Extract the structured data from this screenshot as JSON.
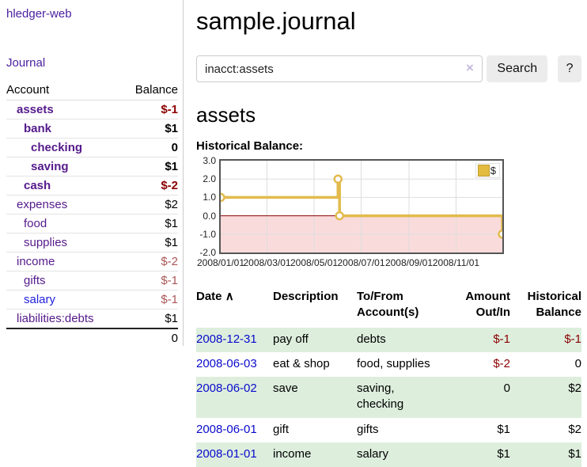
{
  "app": {
    "title": "hledger-web",
    "nav": {
      "journal": "Journal"
    }
  },
  "sidebar": {
    "headers": {
      "account": "Account",
      "balance": "Balance"
    },
    "accounts": [
      {
        "name": "assets",
        "balance": "$-1",
        "level": 1,
        "bold": true,
        "neg": true,
        "link": "purple"
      },
      {
        "name": "bank",
        "balance": "$1",
        "level": 2,
        "bold": true,
        "neg": false,
        "link": "purple"
      },
      {
        "name": "checking",
        "balance": "0",
        "level": 3,
        "bold": true,
        "neg": false,
        "link": "purple"
      },
      {
        "name": "saving",
        "balance": "$1",
        "level": 3,
        "bold": true,
        "neg": false,
        "link": "purple"
      },
      {
        "name": "cash",
        "balance": "$-2",
        "level": 2,
        "bold": true,
        "neg": true,
        "link": "purple"
      },
      {
        "name": "expenses",
        "balance": "$2",
        "level": 1,
        "bold": false,
        "neg": false,
        "link": "purple"
      },
      {
        "name": "food",
        "balance": "$1",
        "level": 2,
        "bold": false,
        "neg": false,
        "link": "purple"
      },
      {
        "name": "supplies",
        "balance": "$1",
        "level": 2,
        "bold": false,
        "neg": false,
        "link": "purple"
      },
      {
        "name": "income",
        "balance": "$-2",
        "level": 1,
        "bold": false,
        "neg": true,
        "link": "purple"
      },
      {
        "name": "gifts",
        "balance": "$-1",
        "level": 2,
        "bold": false,
        "neg": true,
        "link": "purple"
      },
      {
        "name": "salary",
        "balance": "$-1",
        "level": 2,
        "bold": false,
        "neg": true,
        "link": "blue"
      },
      {
        "name": "liabilities:debts",
        "balance": "$1",
        "level": 1,
        "bold": false,
        "neg": false,
        "link": "purple"
      }
    ],
    "total": "0"
  },
  "main": {
    "title": "sample.journal",
    "search": {
      "value": "inacct:assets",
      "clear_icon": "×",
      "button_label": "Search",
      "help_label": "?"
    },
    "account_heading": "assets",
    "chart_title": "Historical Balance:"
  },
  "chart_data": {
    "type": "line",
    "step": true,
    "title": "Historical Balance",
    "series": [
      {
        "name": "$",
        "points": [
          {
            "date": "2008-01-01",
            "value": 1
          },
          {
            "date": "2008-06-01",
            "value": 2
          },
          {
            "date": "2008-06-03",
            "value": 0
          },
          {
            "date": "2008-12-31",
            "value": -1
          }
        ]
      }
    ],
    "x_ticks": [
      "2008/01/01",
      "2008/03/01",
      "2008/05/01",
      "2008/07/01",
      "2008/09/01",
      "2008/11/01"
    ],
    "y_ticks": [
      3.0,
      2.0,
      1.0,
      0.0,
      -1.0,
      -2.0
    ],
    "ylim": [
      -2,
      3
    ],
    "grid": true,
    "legend": {
      "label": "$",
      "position": "top-right"
    },
    "colors": {
      "line": "#e2bb4c",
      "marker_fill": "#ffffff",
      "negative_fill": "#fadbdb",
      "zero_line": "#8b0000",
      "grid": "#dddddd"
    }
  },
  "transactions": {
    "headers": {
      "date": "Date",
      "sort_icon": "∧",
      "description": "Description",
      "accounts": "To/From Account(s)",
      "amount": "Amount Out/In",
      "balance": "Historical Balance"
    },
    "rows": [
      {
        "date": "2008-12-31",
        "description": "pay off",
        "accounts": "debts",
        "amount": "$-1",
        "amount_neg": true,
        "balance": "$-1",
        "balance_neg": true,
        "green": true
      },
      {
        "date": "2008-06-03",
        "description": "eat & shop",
        "accounts": "food, supplies",
        "amount": "$-2",
        "amount_neg": true,
        "balance": "0",
        "balance_neg": false,
        "green": false
      },
      {
        "date": "2008-06-02",
        "description": "save",
        "accounts": "saving, checking",
        "amount": "0",
        "amount_neg": false,
        "balance": "$2",
        "balance_neg": false,
        "green": true
      },
      {
        "date": "2008-06-01",
        "description": "gift",
        "accounts": "gifts",
        "amount": "$1",
        "amount_neg": false,
        "balance": "$2",
        "balance_neg": false,
        "green": false
      },
      {
        "date": "2008-01-01",
        "description": "income",
        "accounts": "salary",
        "amount": "$1",
        "amount_neg": false,
        "balance": "$1",
        "balance_neg": false,
        "green": true
      }
    ]
  }
}
